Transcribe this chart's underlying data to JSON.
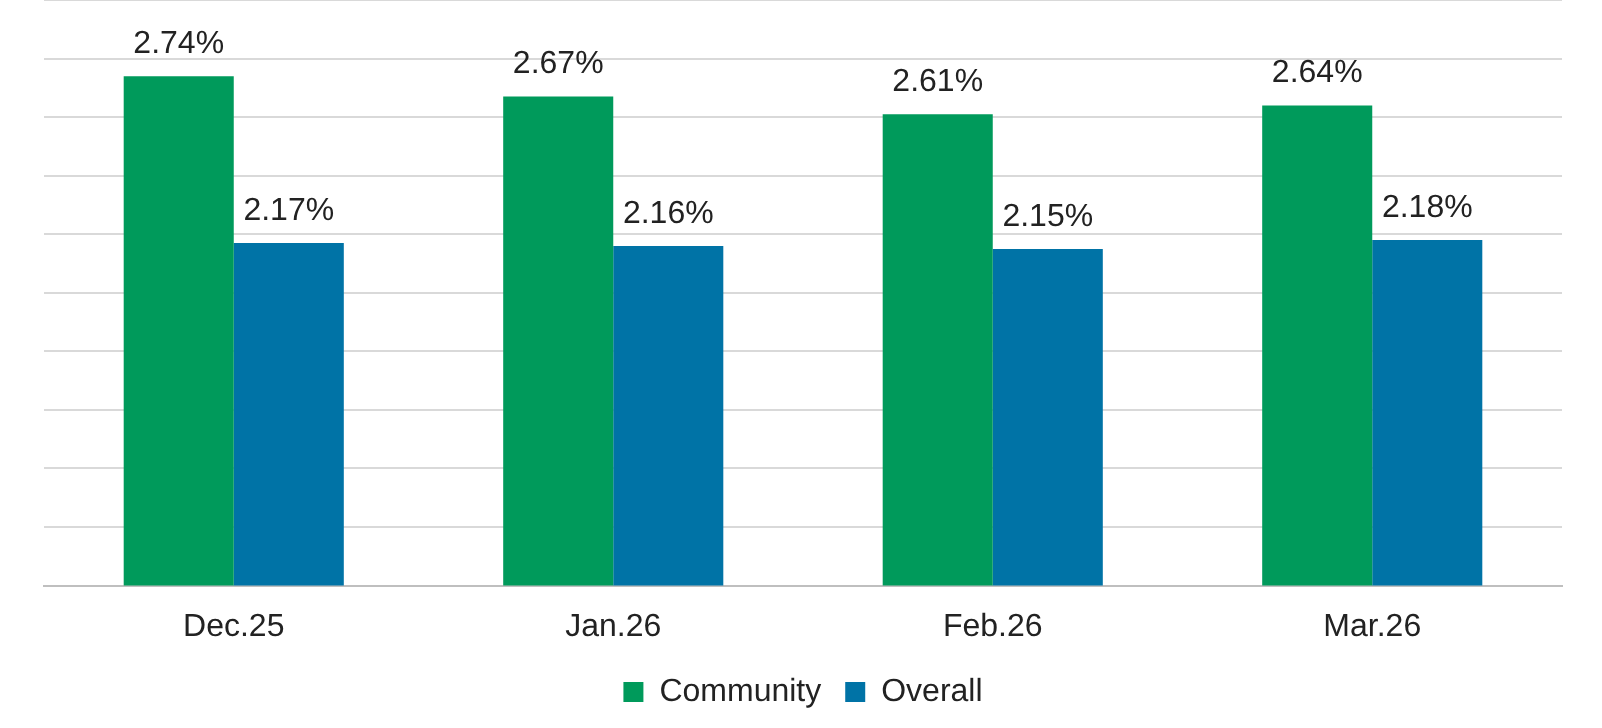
{
  "chart_data": {
    "type": "bar",
    "categories": [
      "Dec.25",
      "Jan.26",
      "Feb.26",
      "Mar.26"
    ],
    "series": [
      {
        "name": "Community",
        "color": "#009a5b",
        "values": [
          2.74,
          2.67,
          2.61,
          2.64
        ],
        "value_labels": [
          "2.74%",
          "2.67%",
          "2.61%",
          "2.64%"
        ]
      },
      {
        "name": "Overall",
        "color": "#0073a6",
        "values": [
          2.17,
          2.16,
          2.15,
          2.18
        ],
        "value_labels": [
          "2.17%",
          "2.16%",
          "2.15%",
          "2.18%"
        ]
      }
    ],
    "ylim": [
      1,
      3
    ],
    "yticks": [
      {
        "value": 1,
        "label": null
      },
      {
        "value": 1.2,
        "label": null
      },
      {
        "value": 1.4,
        "label": null
      },
      {
        "value": 1.6,
        "label": null
      },
      {
        "value": 1.8,
        "label": null
      },
      {
        "value": 2,
        "label": null
      },
      {
        "value": 2.2,
        "label": null
      },
      {
        "value": 2.4,
        "label": null
      },
      {
        "value": 2.6,
        "label": null
      },
      {
        "value": 2.8,
        "label": null
      },
      {
        "value": 3,
        "label": null
      }
    ],
    "tick_labels": "x",
    "grid": "y",
    "legend": "bottom"
  }
}
